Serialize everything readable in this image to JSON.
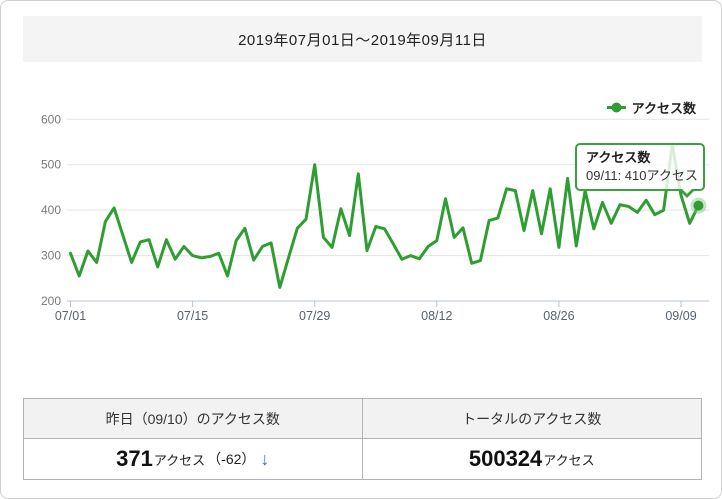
{
  "window": {
    "title": "2019年07月01日～2019年09月11日"
  },
  "legend": {
    "label": "アクセス数"
  },
  "tooltip": {
    "title": "アクセス数",
    "line": "09/11: 410アクセス"
  },
  "stats": {
    "yesterday": {
      "header": "昨日（09/10）のアクセス数",
      "value": "371",
      "unit": "アクセス",
      "diff": "（-62）",
      "arrow_glyph": "↓"
    },
    "total": {
      "header": "トータルのアクセス数",
      "value": "500324",
      "unit": "アクセス"
    }
  },
  "colors": {
    "line": "#2e9e32",
    "point": "#2e9e32",
    "point_halo": "rgba(120,195,125,0.45)",
    "grid": "#e3e3e3",
    "axis": "#b9c4ce",
    "x_label": "#57616b",
    "y_label": "#7a7a7a",
    "tooltip_border": "#3aa23a",
    "arrow": "#2a6fdb",
    "header_bg": "#f4f4f4",
    "table_border": "#b3b3b3",
    "table_header_bg": "#f2f2f2"
  },
  "chart_data": {
    "type": "line",
    "title": "",
    "series_name": "アクセス数",
    "xlabel": "",
    "ylabel": "",
    "ylim": [
      200,
      600
    ],
    "grid": true,
    "legend_position": "top-right",
    "y_ticks": [
      200,
      300,
      400,
      500,
      600
    ],
    "x_ticks": [
      "07/01",
      "07/15",
      "07/29",
      "08/12",
      "08/26",
      "09/09"
    ],
    "x": [
      "07/01",
      "07/02",
      "07/03",
      "07/04",
      "07/05",
      "07/06",
      "07/07",
      "07/08",
      "07/09",
      "07/10",
      "07/11",
      "07/12",
      "07/13",
      "07/14",
      "07/15",
      "07/16",
      "07/17",
      "07/18",
      "07/19",
      "07/20",
      "07/21",
      "07/22",
      "07/23",
      "07/24",
      "07/25",
      "07/26",
      "07/27",
      "07/28",
      "07/29",
      "07/30",
      "07/31",
      "08/01",
      "08/02",
      "08/03",
      "08/04",
      "08/05",
      "08/06",
      "08/07",
      "08/08",
      "08/09",
      "08/10",
      "08/11",
      "08/12",
      "08/13",
      "08/14",
      "08/15",
      "08/16",
      "08/17",
      "08/18",
      "08/19",
      "08/20",
      "08/21",
      "08/22",
      "08/23",
      "08/24",
      "08/25",
      "08/26",
      "08/27",
      "08/28",
      "08/29",
      "08/30",
      "08/31",
      "09/01",
      "09/02",
      "09/03",
      "09/04",
      "09/05",
      "09/06",
      "09/07",
      "09/08",
      "09/09",
      "09/10",
      "09/11"
    ],
    "values": [
      305,
      255,
      310,
      285,
      375,
      405,
      345,
      285,
      330,
      335,
      275,
      335,
      292,
      320,
      300,
      295,
      298,
      305,
      255,
      333,
      360,
      290,
      320,
      328,
      230,
      295,
      360,
      380,
      500,
      340,
      318,
      403,
      344,
      480,
      311,
      364,
      359,
      326,
      292,
      300,
      293,
      320,
      333,
      425,
      340,
      361,
      283,
      289,
      377,
      383,
      447,
      443,
      355,
      443,
      348,
      447,
      318,
      470,
      321,
      443,
      359,
      417,
      371,
      412,
      408,
      395,
      422,
      390,
      400,
      545,
      433,
      371,
      410
    ],
    "highlighted_point": {
      "x": "09/11",
      "value": 410
    }
  }
}
